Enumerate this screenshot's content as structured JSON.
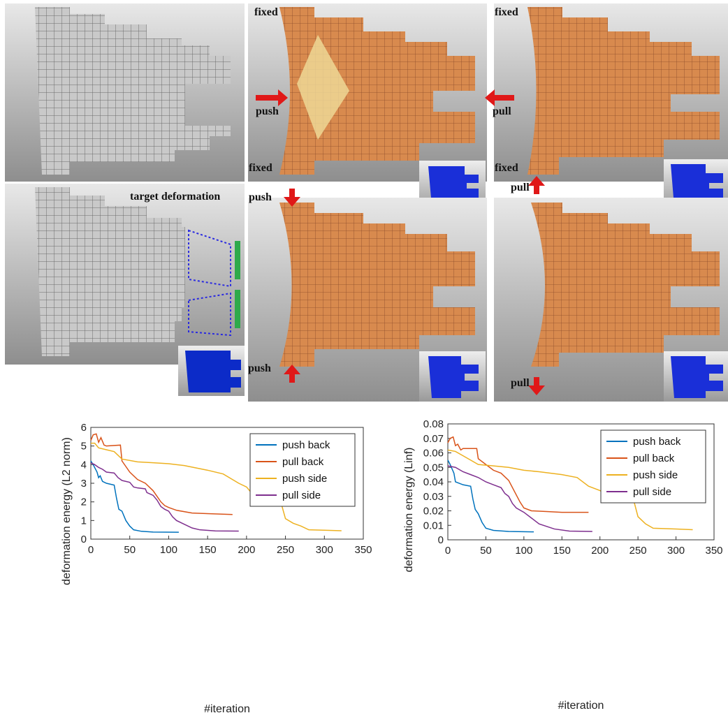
{
  "panels": [
    "fixed",
    "push",
    "fixed",
    "fixed",
    "pull",
    "fixed",
    "target deformation",
    "push",
    "pull",
    "push",
    "pull"
  ],
  "chart_data": [
    {
      "type": "line",
      "x_label": "#iteration",
      "y_label": "deformation energy (L2 norm)",
      "xlim": [
        0,
        350
      ],
      "xticks": [
        0,
        50,
        100,
        150,
        200,
        250,
        300,
        350
      ],
      "ylim": [
        0,
        6
      ],
      "yticks": [
        0,
        1,
        2,
        3,
        4,
        5,
        6
      ],
      "legend": "upper right",
      "series": [
        {
          "name": "push back",
          "color": "#0072bd",
          "x": [
            0,
            3,
            8,
            10,
            12,
            15,
            20,
            30,
            33,
            36,
            40,
            45,
            50,
            55,
            65,
            80,
            113
          ],
          "values": [
            4.2,
            4.0,
            3.6,
            3.3,
            3.4,
            3.1,
            3.0,
            2.9,
            2.2,
            1.6,
            1.5,
            1.0,
            0.7,
            0.5,
            0.42,
            0.38,
            0.37
          ]
        },
        {
          "name": "pull back",
          "color": "#d95319",
          "x": [
            0,
            3,
            7,
            10,
            13,
            17,
            20,
            38,
            40,
            45,
            50,
            60,
            70,
            80,
            90,
            95,
            100,
            110,
            130,
            150,
            182
          ],
          "values": [
            5.3,
            5.6,
            5.65,
            5.2,
            5.45,
            5.05,
            5.0,
            5.05,
            4.2,
            3.9,
            3.6,
            3.2,
            3.0,
            2.6,
            2.0,
            1.8,
            1.7,
            1.55,
            1.4,
            1.37,
            1.32
          ]
        },
        {
          "name": "push side",
          "color": "#edb120",
          "x": [
            0,
            5,
            10,
            20,
            30,
            40,
            60,
            80,
            100,
            120,
            150,
            170,
            190,
            200,
            205,
            210,
            220,
            230,
            240,
            245,
            250,
            260,
            270,
            280,
            300,
            322
          ],
          "values": [
            5.15,
            5.15,
            4.9,
            4.8,
            4.7,
            4.3,
            4.15,
            4.1,
            4.05,
            3.95,
            3.7,
            3.5,
            3.0,
            2.8,
            2.55,
            2.25,
            2.2,
            2.0,
            1.9,
            1.85,
            1.1,
            0.85,
            0.7,
            0.5,
            0.48,
            0.45
          ]
        },
        {
          "name": "pull side",
          "color": "#7e2f8e",
          "x": [
            0,
            5,
            10,
            15,
            20,
            30,
            35,
            40,
            50,
            55,
            60,
            70,
            72,
            80,
            85,
            90,
            95,
            100,
            105,
            110,
            120,
            130,
            140,
            160,
            190
          ],
          "values": [
            4.1,
            4.0,
            3.85,
            3.75,
            3.6,
            3.55,
            3.3,
            3.15,
            3.05,
            2.8,
            2.75,
            2.7,
            2.5,
            2.35,
            2.1,
            1.75,
            1.6,
            1.5,
            1.2,
            1.0,
            0.8,
            0.6,
            0.5,
            0.44,
            0.43
          ]
        }
      ]
    },
    {
      "type": "line",
      "x_label": "#iteration",
      "y_label": "deformation energy (Linf)",
      "xlim": [
        0,
        350
      ],
      "xticks": [
        0,
        50,
        100,
        150,
        200,
        250,
        300,
        350
      ],
      "ylim": [
        0,
        0.08
      ],
      "yticks": [
        0,
        0.01,
        0.02,
        0.03,
        0.04,
        0.05,
        0.06,
        0.07,
        0.08
      ],
      "legend": "upper right",
      "series": [
        {
          "name": "push back",
          "color": "#0072bd",
          "x": [
            0,
            3,
            8,
            10,
            15,
            20,
            30,
            33,
            36,
            40,
            45,
            50,
            60,
            80,
            113
          ],
          "values": [
            0.055,
            0.052,
            0.046,
            0.04,
            0.039,
            0.038,
            0.037,
            0.028,
            0.021,
            0.018,
            0.012,
            0.008,
            0.0065,
            0.0058,
            0.0055
          ]
        },
        {
          "name": "pull back",
          "color": "#d95319",
          "x": [
            0,
            3,
            7,
            10,
            13,
            17,
            20,
            38,
            40,
            50,
            60,
            70,
            80,
            90,
            95,
            100,
            110,
            130,
            150,
            185
          ],
          "values": [
            0.067,
            0.07,
            0.071,
            0.065,
            0.066,
            0.062,
            0.063,
            0.063,
            0.056,
            0.052,
            0.048,
            0.046,
            0.041,
            0.031,
            0.026,
            0.022,
            0.02,
            0.0195,
            0.019,
            0.019
          ]
        },
        {
          "name": "push side",
          "color": "#edb120",
          "x": [
            0,
            10,
            20,
            30,
            40,
            60,
            80,
            100,
            120,
            150,
            170,
            185,
            200,
            210,
            230,
            245,
            250,
            260,
            270,
            300,
            322
          ],
          "values": [
            0.062,
            0.061,
            0.058,
            0.055,
            0.052,
            0.051,
            0.05,
            0.048,
            0.047,
            0.045,
            0.043,
            0.037,
            0.034,
            0.031,
            0.028,
            0.026,
            0.016,
            0.011,
            0.008,
            0.0075,
            0.007
          ]
        },
        {
          "name": "pull side",
          "color": "#7e2f8e",
          "x": [
            0,
            10,
            20,
            30,
            40,
            50,
            60,
            70,
            75,
            80,
            85,
            90,
            100,
            110,
            120,
            140,
            160,
            190
          ],
          "values": [
            0.051,
            0.05,
            0.047,
            0.045,
            0.043,
            0.04,
            0.038,
            0.036,
            0.032,
            0.03,
            0.025,
            0.022,
            0.019,
            0.015,
            0.011,
            0.0075,
            0.006,
            0.0058
          ]
        }
      ]
    }
  ]
}
